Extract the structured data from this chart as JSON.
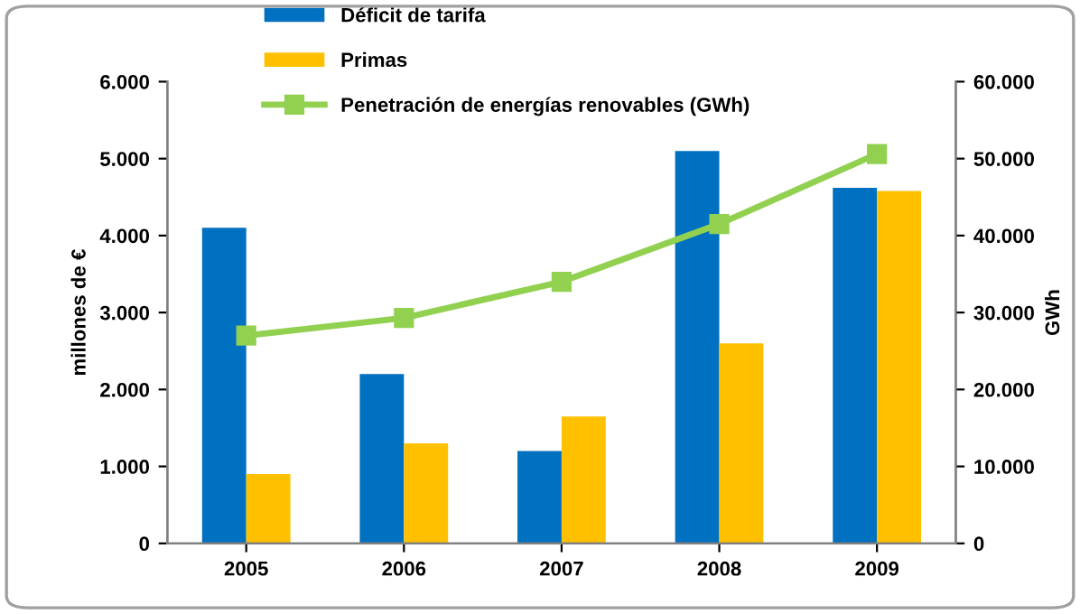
{
  "chart_data": {
    "type": "bar",
    "categories": [
      "2005",
      "2006",
      "2007",
      "2008",
      "2009"
    ],
    "ylabel": "millones de €",
    "y2label": "GWh",
    "series": [
      {
        "name": "Déficit de tarifa",
        "color": "#0070c0",
        "values": [
          4100,
          2200,
          1200,
          5100,
          4620
        ]
      },
      {
        "name": "Primas",
        "color": "#ffc000",
        "values": [
          900,
          1300,
          1650,
          2600,
          4580
        ]
      },
      {
        "name": "Penetración de energías renovables (GWh)",
        "type": "line",
        "axis": "y2",
        "color": "#92d050",
        "marker": "square",
        "values": [
          27000,
          29300,
          34000,
          41500,
          50600
        ]
      }
    ],
    "ylim": [
      0,
      6000
    ],
    "yticks": [
      0,
      {
        "value": 1000,
        "label": "1.000"
      },
      {
        "value": 2000,
        "label": "2.000"
      },
      {
        "value": 3000,
        "label": "3.000"
      },
      {
        "value": 4000,
        "label": "4.000"
      },
      {
        "value": 5000,
        "label": "5.000"
      },
      {
        "value": 6000,
        "label": "6.000"
      }
    ],
    "y2lim": [
      0,
      60000
    ],
    "y2ticks": [
      0,
      {
        "value": 10000,
        "label": "10.000"
      },
      {
        "value": 20000,
        "label": "20.000"
      },
      {
        "value": 30000,
        "label": "30.000"
      },
      {
        "value": 40000,
        "label": "40.000"
      },
      {
        "value": 50000,
        "label": "50.000"
      },
      {
        "value": 60000,
        "label": "60.000"
      }
    ],
    "grid": false,
    "legend": "top left"
  }
}
